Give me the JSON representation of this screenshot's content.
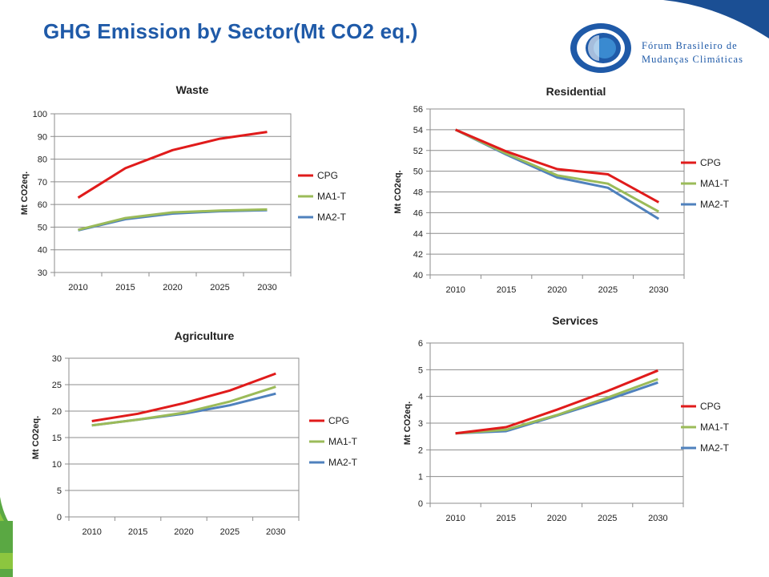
{
  "page": {
    "title": "GHG Emission by Sector(Mt CO2 eq.)"
  },
  "logo": {
    "line1": "Fórum Brasileiro de",
    "line2": "Mudanças Climáticas"
  },
  "colors": {
    "CPG": "#e01b1b",
    "MA1-T": "#9bbb59",
    "MA2-T": "#4f81bd",
    "title": "#1f5aa8"
  },
  "chart_data": [
    {
      "type": "line",
      "title": "Waste",
      "ylabel": "Mt CO2eq.",
      "x": [
        "2010",
        "2015",
        "2020",
        "2025",
        "2030"
      ],
      "ylim": [
        30,
        100
      ],
      "yticks": [
        "30",
        "40",
        "50",
        "60",
        "70",
        "80",
        "90",
        "100"
      ],
      "ytick_values": [
        30,
        40,
        50,
        60,
        70,
        80,
        90,
        100
      ],
      "series": [
        {
          "name": "CPG",
          "values": [
            63,
            76,
            84,
            89,
            92
          ]
        },
        {
          "name": "MA1-T",
          "values": [
            48.8,
            54,
            56.5,
            57.3,
            57.8
          ]
        },
        {
          "name": "MA2-T",
          "values": [
            48.6,
            53.5,
            56,
            57,
            57.5
          ]
        }
      ]
    },
    {
      "type": "line",
      "title": "Residential",
      "ylabel": "Mt CO2eq.",
      "x": [
        "2010",
        "2015",
        "2020",
        "2025",
        "2030"
      ],
      "ylim": [
        40,
        56
      ],
      "yticks": [
        "40",
        "42",
        "44",
        "46",
        "48",
        "50",
        "52",
        "54",
        "56"
      ],
      "ytick_values": [
        40,
        42,
        44,
        46,
        48,
        50,
        52,
        54,
        56
      ],
      "series": [
        {
          "name": "CPG",
          "values": [
            54,
            51.9,
            50.2,
            49.7,
            47
          ]
        },
        {
          "name": "MA1-T",
          "values": [
            54,
            51.7,
            49.6,
            48.8,
            46.1
          ]
        },
        {
          "name": "MA2-T",
          "values": [
            54,
            51.6,
            49.4,
            48.4,
            45.4
          ]
        }
      ]
    },
    {
      "type": "line",
      "title": "Agriculture",
      "ylabel": "Mt CO2eq.",
      "x": [
        "2010",
        "2015",
        "2020",
        "2025",
        "2030"
      ],
      "ylim": [
        0,
        30
      ],
      "yticks": [
        "0",
        "5",
        "10",
        "15",
        "20",
        "25",
        "30"
      ],
      "ytick_values": [
        0,
        5,
        10,
        15,
        20,
        25,
        30
      ],
      "series": [
        {
          "name": "CPG",
          "values": [
            18.1,
            19.5,
            21.5,
            23.9,
            27.1
          ]
        },
        {
          "name": "MA1-T",
          "values": [
            17.3,
            18.4,
            19.7,
            21.8,
            24.6
          ]
        },
        {
          "name": "MA2-T",
          "values": [
            17.3,
            18.4,
            19.5,
            21.1,
            23.3
          ]
        }
      ]
    },
    {
      "type": "line",
      "title": "Services",
      "ylabel": "Mt CO2eq.",
      "x": [
        "2010",
        "2015",
        "2020",
        "2025",
        "2030"
      ],
      "ylim": [
        0,
        6
      ],
      "yticks": [
        "0",
        "1",
        "2",
        "3",
        "4",
        "5",
        "6"
      ],
      "ytick_values": [
        0,
        1,
        2,
        3,
        4,
        5,
        6
      ],
      "series": [
        {
          "name": "CPG",
          "values": [
            2.62,
            2.85,
            3.5,
            4.2,
            4.97
          ]
        },
        {
          "name": "MA1-T",
          "values": [
            2.62,
            2.75,
            3.3,
            3.95,
            4.65
          ]
        },
        {
          "name": "MA2-T",
          "values": [
            2.62,
            2.7,
            3.28,
            3.87,
            4.52
          ]
        }
      ]
    }
  ]
}
